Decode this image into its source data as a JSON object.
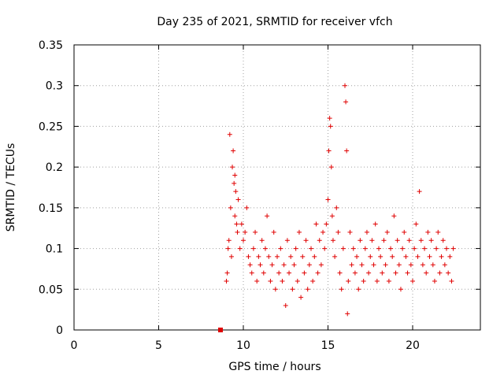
{
  "chart_data": {
    "type": "scatter",
    "title": "Day 235 of 2021, SRMTID for receiver vfch",
    "xlabel": "GPS time / hours",
    "ylabel": "SRMTID / TECUs",
    "xlim": [
      0,
      24
    ],
    "ylim": [
      0,
      0.35
    ],
    "xticks": [
      0,
      5,
      10,
      15,
      20
    ],
    "xtick_labels": [
      "0",
      "5",
      "10",
      "15",
      "20"
    ],
    "yticks": [
      0,
      0.05,
      0.1,
      0.15,
      0.2,
      0.25,
      0.3,
      0.35
    ],
    "ytick_labels": [
      "0",
      "0.05",
      "0.1",
      "0.15",
      "0.2",
      "0.25",
      "0.3",
      "0.35"
    ],
    "grid": true,
    "marker": "plus",
    "color": "#e00000",
    "series": [
      {
        "name": "SRMTID",
        "x": [
          8.65,
          9.05,
          9.1,
          9.2,
          9.25,
          9.35,
          9.4,
          9.45,
          9.5,
          9.55,
          9.6,
          9.7,
          9.0,
          9.15,
          9.3,
          9.5,
          9.65,
          9.8,
          9.9,
          10.0,
          10.1,
          10.2,
          10.3,
          10.4,
          10.5,
          10.6,
          10.7,
          10.8,
          10.9,
          11.0,
          11.1,
          11.2,
          11.3,
          11.4,
          11.5,
          11.6,
          11.7,
          11.8,
          11.9,
          12.0,
          12.1,
          12.2,
          12.3,
          12.4,
          12.5,
          12.6,
          12.7,
          12.8,
          12.9,
          13.0,
          13.1,
          13.2,
          13.3,
          13.4,
          13.5,
          13.6,
          13.7,
          13.8,
          13.9,
          14.0,
          14.1,
          14.2,
          14.3,
          14.4,
          14.5,
          14.6,
          14.7,
          14.8,
          14.9,
          15.0,
          15.05,
          15.1,
          15.15,
          15.2,
          15.25,
          15.3,
          15.4,
          15.5,
          15.6,
          15.7,
          15.8,
          15.9,
          16.0,
          16.05,
          16.1,
          16.15,
          16.2,
          16.3,
          16.4,
          16.5,
          16.6,
          16.7,
          16.8,
          16.9,
          17.0,
          17.1,
          17.2,
          17.3,
          17.4,
          17.5,
          17.6,
          17.7,
          17.8,
          17.9,
          18.0,
          18.1,
          18.2,
          18.3,
          18.4,
          18.5,
          18.6,
          18.7,
          18.8,
          18.9,
          19.0,
          19.1,
          19.2,
          19.3,
          19.4,
          19.5,
          19.6,
          19.7,
          19.8,
          19.9,
          20.0,
          20.1,
          20.2,
          20.3,
          20.4,
          20.5,
          20.6,
          20.7,
          20.8,
          20.9,
          21.0,
          21.1,
          21.2,
          21.3,
          21.4,
          21.5,
          21.6,
          21.7,
          21.8,
          21.9,
          22.0,
          22.1,
          22.2,
          22.3,
          22.4
        ],
        "y": [
          0.0,
          0.07,
          0.1,
          0.24,
          0.15,
          0.2,
          0.22,
          0.18,
          0.19,
          0.17,
          0.13,
          0.16,
          0.06,
          0.11,
          0.09,
          0.14,
          0.12,
          0.1,
          0.13,
          0.11,
          0.12,
          0.15,
          0.09,
          0.08,
          0.07,
          0.1,
          0.12,
          0.06,
          0.09,
          0.08,
          0.11,
          0.07,
          0.1,
          0.14,
          0.09,
          0.06,
          0.08,
          0.12,
          0.05,
          0.09,
          0.07,
          0.1,
          0.06,
          0.08,
          0.03,
          0.11,
          0.07,
          0.09,
          0.05,
          0.08,
          0.1,
          0.06,
          0.12,
          0.04,
          0.09,
          0.07,
          0.11,
          0.05,
          0.08,
          0.1,
          0.06,
          0.09,
          0.13,
          0.07,
          0.11,
          0.08,
          0.12,
          0.1,
          0.13,
          0.16,
          0.22,
          0.26,
          0.25,
          0.2,
          0.14,
          0.11,
          0.09,
          0.15,
          0.12,
          0.07,
          0.05,
          0.1,
          0.3,
          0.28,
          0.22,
          0.02,
          0.06,
          0.12,
          0.08,
          0.1,
          0.07,
          0.09,
          0.05,
          0.11,
          0.08,
          0.06,
          0.1,
          0.12,
          0.07,
          0.09,
          0.11,
          0.08,
          0.13,
          0.06,
          0.1,
          0.09,
          0.07,
          0.11,
          0.08,
          0.12,
          0.06,
          0.1,
          0.09,
          0.14,
          0.07,
          0.11,
          0.08,
          0.05,
          0.1,
          0.12,
          0.09,
          0.07,
          0.11,
          0.08,
          0.06,
          0.1,
          0.13,
          0.09,
          0.17,
          0.11,
          0.08,
          0.1,
          0.07,
          0.12,
          0.09,
          0.11,
          0.08,
          0.06,
          0.1,
          0.12,
          0.07,
          0.09,
          0.11,
          0.08,
          0.1,
          0.07,
          0.09,
          0.06,
          0.1
        ]
      }
    ]
  }
}
